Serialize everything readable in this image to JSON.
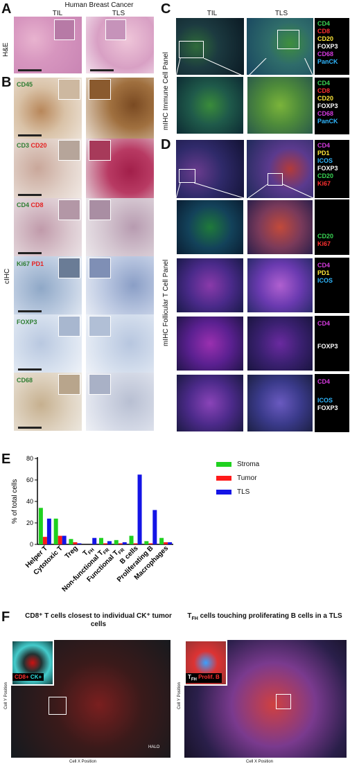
{
  "panels": {
    "A": "A",
    "B": "B",
    "C": "C",
    "D": "D",
    "E": "E",
    "F": "F"
  },
  "panelA": {
    "title": "Human Breast Cancer",
    "col_til": "TIL",
    "col_tls": "TLS",
    "row_label": "H&E"
  },
  "panelB": {
    "row_label": "cIHC",
    "rows": [
      {
        "tag1": "CD45",
        "tag2": ""
      },
      {
        "tag1": "CD3",
        "tag2": "CD20"
      },
      {
        "tag1": "CD4",
        "tag2": "CD8"
      },
      {
        "tag1": "Ki67",
        "tag2": "PD1"
      },
      {
        "tag1": "FOXP3",
        "tag2": ""
      },
      {
        "tag1": "CD68",
        "tag2": ""
      }
    ]
  },
  "panelC": {
    "col_til": "TIL",
    "col_tls": "TLS",
    "row_label": "mIHC Immune Cell Panel",
    "legend": [
      {
        "text": "CD4",
        "color": "#39d353"
      },
      {
        "text": "CD8",
        "color": "#ff3030"
      },
      {
        "text": "CD20",
        "color": "#ffe83a"
      },
      {
        "text": "FOXP3",
        "color": "#ffffff"
      },
      {
        "text": "CD68",
        "color": "#d63adf"
      },
      {
        "text": "PanCK",
        "color": "#30b8ff"
      }
    ]
  },
  "panelD": {
    "row_label": "mIHC Follicular T Cell Panel",
    "legend_overview": [
      {
        "text": "CD4",
        "color": "#d63adf"
      },
      {
        "text": "PD1",
        "color": "#ffe83a"
      },
      {
        "text": "ICOS",
        "color": "#30b8ff"
      },
      {
        "text": "FOXP3",
        "color": "#ffffff"
      },
      {
        "text": "CD20",
        "color": "#39d353"
      },
      {
        "text": "Ki67",
        "color": "#ff3030"
      }
    ],
    "legend_row1": [
      {
        "text": "CD20",
        "color": "#39d353"
      },
      {
        "text": "Ki67",
        "color": "#ff3030"
      }
    ],
    "legend_row2": [
      {
        "text": "CD4",
        "color": "#d63adf"
      },
      {
        "text": "PD1",
        "color": "#ffe83a"
      },
      {
        "text": "ICOS",
        "color": "#30b8ff"
      }
    ],
    "legend_row3": [
      {
        "text": "CD4",
        "color": "#d63adf"
      },
      {
        "text": "FOXP3",
        "color": "#ffffff"
      }
    ],
    "legend_row4": [
      {
        "text": "CD4",
        "color": "#d63adf"
      },
      {
        "text": "ICOS",
        "color": "#30b8ff"
      },
      {
        "text": "FOXP3",
        "color": "#ffffff"
      }
    ]
  },
  "chart_data": {
    "type": "bar",
    "ylabel": "% of total cells",
    "ylim": [
      0,
      80
    ],
    "yticks": [
      0,
      20,
      40,
      60,
      80
    ],
    "categories": [
      "Helper T",
      "Cytotoxic T",
      "Treg",
      "T_FH",
      "Non-functional T_FR",
      "Functional T_FR",
      "B cells",
      "Proliferating B",
      "Macrophages"
    ],
    "category_labels": [
      {
        "main": "Helper T",
        "sub": ""
      },
      {
        "main": "Cytotoxic T",
        "sub": ""
      },
      {
        "main": "Treg",
        "sub": ""
      },
      {
        "main": "T",
        "sub": "FH"
      },
      {
        "main": "Non-functional T",
        "sub": "FR"
      },
      {
        "main": "Functional T",
        "sub": "FR"
      },
      {
        "main": "B cells",
        "sub": ""
      },
      {
        "main": "Proliferating B",
        "sub": ""
      },
      {
        "main": "Macrophages",
        "sub": ""
      }
    ],
    "series": [
      {
        "name": "Stroma",
        "color": "#1fd11f",
        "values": [
          34,
          24,
          5,
          0,
          6,
          4,
          8,
          3,
          6
        ]
      },
      {
        "name": "Tumor",
        "color": "#ff1a1a",
        "values": [
          7,
          8,
          2,
          0,
          1,
          1,
          1,
          1,
          2
        ]
      },
      {
        "name": "TLS",
        "color": "#1414e6",
        "values": [
          24,
          8,
          1,
          6,
          3,
          2,
          65,
          32,
          2
        ]
      }
    ],
    "legend_position": "top-right"
  },
  "panelF": {
    "left_title": "CD8⁺ T cells closest to individual CK⁺ tumor cells",
    "right_title_main": "T",
    "right_title_sub": "FH",
    "right_title_rest": " cells touching proliferating B cells in a TLS",
    "left_tag1": "CD8+",
    "left_tag2": "CK+",
    "right_tag1_main": "T",
    "right_tag1_sub": "FH",
    "right_tag2": "Prolif. B",
    "xaxis": "Cell X Position",
    "yaxis": "Cell Y Position",
    "brand": "HALO"
  }
}
